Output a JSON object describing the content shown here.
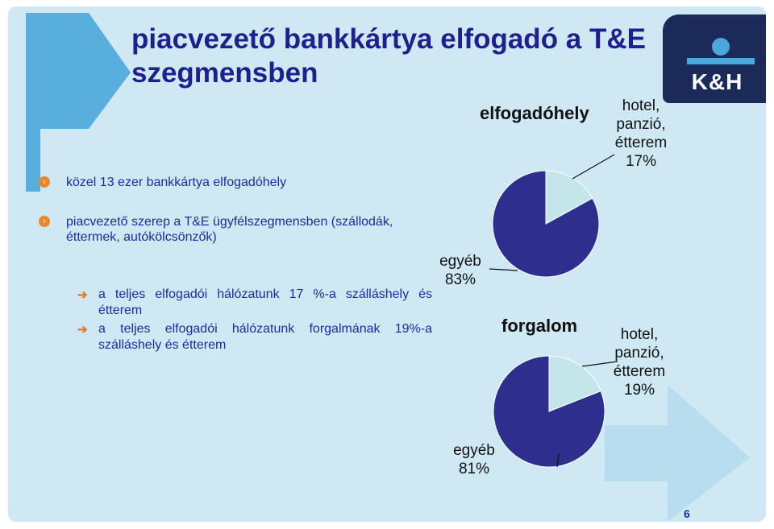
{
  "title": "piacvezető bankkártya elfogadó a T&E szegmensben",
  "logo": {
    "text": "K&H"
  },
  "bullets": [
    {
      "text": "közel 13 ezer bankkártya elfogadóhely"
    },
    {
      "text": "piacvezető szerep a T&E ügyfélszegmensben (szállodák, éttermek, autókölcsönzők)"
    }
  ],
  "sub_bullets": [
    {
      "text": "a teljes elfogadói hálózatunk 17 %-a szálláshely és étterem"
    },
    {
      "text": "a teljes elfogadói hálózatunk forgalmának 19%-a szálláshely és étterem"
    }
  ],
  "page_number": "6",
  "colors": {
    "title": "#1f1f8e",
    "bullet_text": "#1f2a9e",
    "slide_bg": "#cfe9f4",
    "pie_major": "#2e2e8e",
    "pie_minor": "#c4e6ea",
    "logo_bg": "#1c2a59",
    "accent": "#e9862a"
  },
  "icons": {
    "bullet_l1": "orange-circle-arrow-icon",
    "bullet_l2": "orange-arrow-icon"
  },
  "chart_data": [
    {
      "type": "pie",
      "title": "elfogadóhely",
      "slices": [
        {
          "label_lines": [
            "hotel,",
            "panzió,",
            "étterem",
            "17%"
          ],
          "value": 17,
          "color": "#c4e6ea"
        },
        {
          "label_lines": [
            "egyéb",
            "83%"
          ],
          "value": 83,
          "color": "#2e2e8e"
        }
      ]
    },
    {
      "type": "pie",
      "title": "forgalom",
      "slices": [
        {
          "label_lines": [
            "hotel,",
            "panzió,",
            "étterem",
            "19%"
          ],
          "value": 19,
          "color": "#c4e6ea"
        },
        {
          "label_lines": [
            "egyéb",
            "81%"
          ],
          "value": 81,
          "color": "#2e2e8e"
        }
      ]
    }
  ]
}
